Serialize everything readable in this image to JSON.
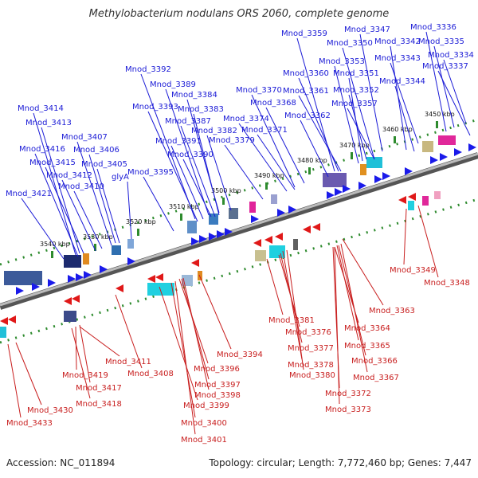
{
  "title": "Methylobacterium nodulans ORS 2060, complete genome",
  "footer": {
    "accession": "Accession: NC_011894",
    "summary": "Topology: circular; Length: 7,772,460 bp; Genes: 7,447"
  },
  "colors": {
    "forward_label": "#1a1ad6",
    "reverse_label": "#c81e1e",
    "backbone": "#8a8a8a",
    "tick": "#2e8b2e"
  },
  "kbp_ticks": [
    "3450 kbp",
    "3460 kbp",
    "3470 kbp",
    "3480 kbp",
    "3490 kbp",
    "3500 kbp",
    "3510 kbp",
    "3520 kbp",
    "3530 kbp",
    "3540 kbp"
  ],
  "forward_labels": [
    "Mnod_3336",
    "Mnod_3335",
    "Mnod_3334",
    "Mnod_3337",
    "Mnod_3347",
    "Mnod_3342",
    "Mnod_3350",
    "Mnod_3343",
    "Mnod_3359",
    "Mnod_3353",
    "Mnod_3351",
    "Mnod_3344",
    "Mnod_3360",
    "Mnod_3352",
    "Mnod_3361",
    "Mnod_3357",
    "Mnod_3370",
    "Mnod_3368",
    "Mnod_3362",
    "Mnod_3374",
    "Mnod_3371",
    "Mnod_3379",
    "Mnod_3392",
    "Mnod_3389",
    "Mnod_3384",
    "Mnod_3393",
    "Mnod_3383",
    "Mnod_3387",
    "Mnod_3382",
    "Mnod_3391",
    "Mnod_3390",
    "Mnod_3395",
    "Mnod_3414",
    "Mnod_3413",
    "Mnod_3407",
    "Mnod_3406",
    "Mnod_3416",
    "Mnod_3415",
    "Mnod_3405",
    "Mnod_3412",
    "glyA",
    "Mnod_3410",
    "Mnod_3421"
  ],
  "reverse_labels": [
    "Mnod_3349",
    "Mnod_3348",
    "Mnod_3363",
    "Mnod_3381",
    "Mnod_3364",
    "Mnod_3376",
    "Mnod_3377",
    "Mnod_3365",
    "Mnod_3378",
    "Mnod_3366",
    "Mnod_3380",
    "Mnod_3367",
    "Mnod_3372",
    "Mnod_3373",
    "Mnod_3394",
    "Mnod_3411",
    "Mnod_3396",
    "Mnod_3408",
    "Mnod_3397",
    "Mnod_3398",
    "Mnod_3399",
    "Mnod_3400",
    "Mnod_3401",
    "Mnod_3419",
    "Mnod_3417",
    "Mnod_3418",
    "Mnod_3430",
    "Mnod_3433"
  ]
}
